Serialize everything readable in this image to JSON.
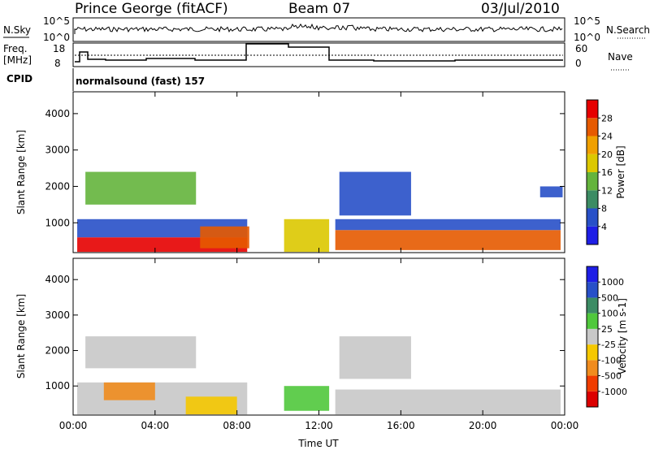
{
  "header": {
    "station": "Prince George (fitACF)",
    "beam": "Beam 07",
    "date": "03/Jul/2010"
  },
  "panels": {
    "nsky_label": "N.Sky",
    "nsky_ticks": [
      "10^5",
      "10^0"
    ],
    "nsearch_label": "N.Search",
    "nsearch_ticks": [
      "10^5",
      "10^0"
    ],
    "freq_label_1": "Freq.",
    "freq_label_2": "[MHz]",
    "freq_ticks": [
      "18",
      "8"
    ],
    "nave_label": "Nave",
    "nave_ticks": [
      "60",
      "0"
    ],
    "cpid_label": "CPID",
    "cpid_text": "normalsound (fast) 157"
  },
  "colors": {
    "power": [
      "#1e1ee6",
      "#2850c8",
      "#3c8c64",
      "#64b43c",
      "#dcc800",
      "#f0a000",
      "#e65a00",
      "#e60000"
    ],
    "velocity": [
      "#dc0000",
      "#f03c00",
      "#f08c1e",
      "#f5c800",
      "#c8c8c8",
      "#50c83c",
      "#3c8c64",
      "#2850c8",
      "#1e1ee6"
    ]
  },
  "chart_data": [
    {
      "type": "heatmap",
      "name": "power",
      "xlabel": "",
      "ylabel": "Slant Range [km]",
      "colorbar_label": "Power [dB]",
      "colorbar_ticks": [
        "4",
        "8",
        "12",
        "16",
        "20",
        "24",
        "28"
      ],
      "xlim": [
        0,
        24
      ],
      "ylim": [
        180,
        4600
      ],
      "yticks": [
        "1000",
        "2000",
        "3000",
        "4000"
      ],
      "grid": false,
      "regions": [
        {
          "x": [
            0.2,
            8.5
          ],
          "y": [
            200,
            600
          ],
          "level": 7
        },
        {
          "x": [
            0.2,
            8.5
          ],
          "y": [
            600,
            1100
          ],
          "level": 1
        },
        {
          "x": [
            0.6,
            6.0
          ],
          "y": [
            1500,
            2400
          ],
          "level": 3
        },
        {
          "x": [
            6.2,
            8.6
          ],
          "y": [
            300,
            900
          ],
          "level": 6
        },
        {
          "x": [
            10.3,
            12.5
          ],
          "y": [
            200,
            1100
          ],
          "level": 4
        },
        {
          "x": [
            12.8,
            23.8
          ],
          "y": [
            250,
            800
          ],
          "level": 6
        },
        {
          "x": [
            12.8,
            23.8
          ],
          "y": [
            800,
            1100
          ],
          "level": 1
        },
        {
          "x": [
            13.0,
            16.5
          ],
          "y": [
            1200,
            2400
          ],
          "level": 1
        },
        {
          "x": [
            22.8,
            23.9
          ],
          "y": [
            1700,
            2000
          ],
          "level": 1
        }
      ]
    },
    {
      "type": "heatmap",
      "name": "velocity",
      "xlabel": "Time UT",
      "ylabel": "Slant Range [km]",
      "colorbar_label": "Velocity [m s-1]",
      "colorbar_ticks": [
        "1000",
        "500",
        "100",
        "25",
        "-25",
        "-100",
        "-500",
        "-1000"
      ],
      "xlim": [
        0,
        24
      ],
      "ylim": [
        180,
        4600
      ],
      "yticks": [
        "1000",
        "2000",
        "3000",
        "4000"
      ],
      "xticks": [
        "00:00",
        "04:00",
        "08:00",
        "12:00",
        "16:00",
        "20:00",
        "00:00"
      ],
      "grid": false,
      "regions": [
        {
          "x": [
            0.2,
            8.5
          ],
          "y": [
            200,
            1100
          ],
          "level": 4
        },
        {
          "x": [
            0.6,
            6.0
          ],
          "y": [
            1500,
            2400
          ],
          "level": 4
        },
        {
          "x": [
            1.5,
            4.0
          ],
          "y": [
            600,
            1100
          ],
          "level": 2
        },
        {
          "x": [
            5.5,
            8.0
          ],
          "y": [
            200,
            700
          ],
          "level": 3
        },
        {
          "x": [
            10.3,
            12.5
          ],
          "y": [
            300,
            1000
          ],
          "level": 5
        },
        {
          "x": [
            12.8,
            23.8
          ],
          "y": [
            200,
            900
          ],
          "level": 4
        },
        {
          "x": [
            13.0,
            16.5
          ],
          "y": [
            1200,
            2400
          ],
          "level": 4
        }
      ]
    }
  ]
}
